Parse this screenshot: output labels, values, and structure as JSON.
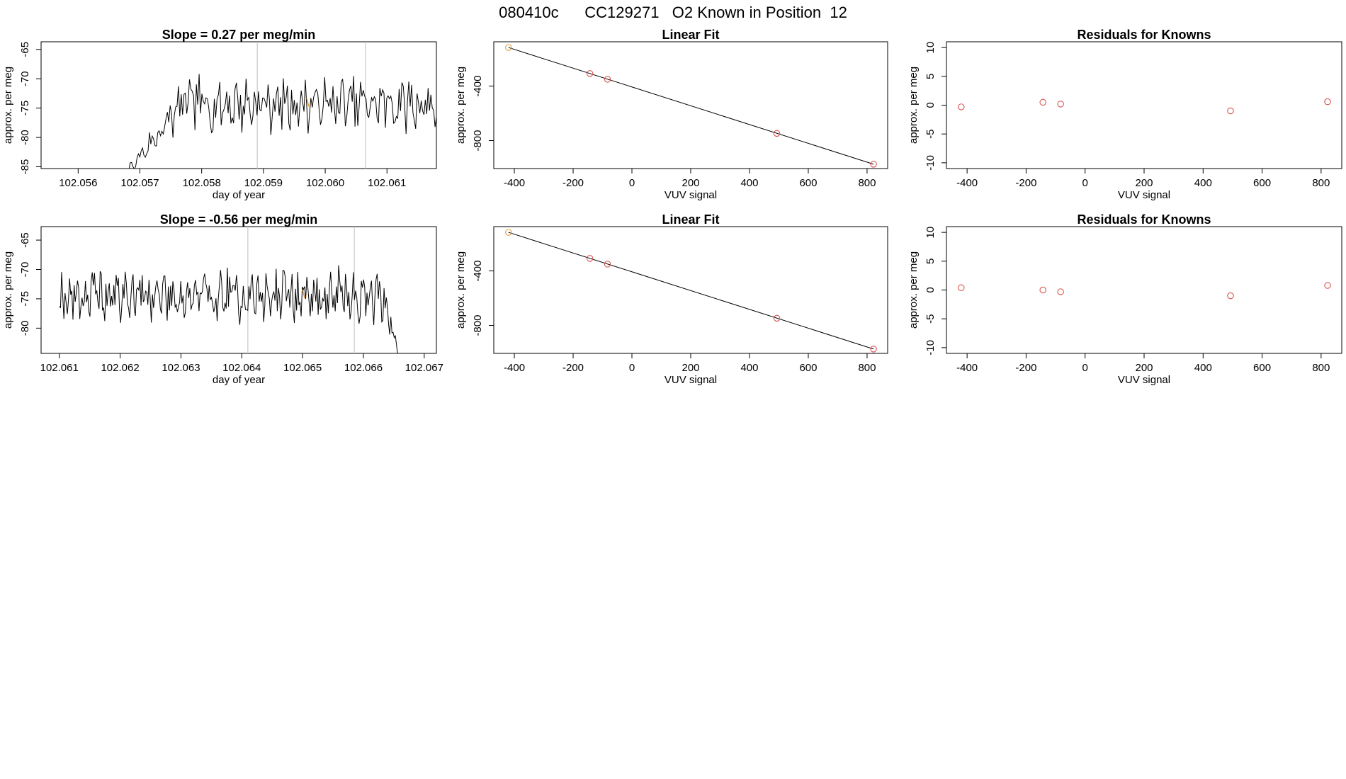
{
  "figure": {
    "title": "080410c      CC129271   O2 Known in Position  12"
  },
  "colors": {
    "axis": "#000000",
    "series": "#000000",
    "marker_line": "#c8c8c8",
    "point": "#d9534f",
    "highlight": "#e8a040"
  },
  "chart_data": [
    {
      "id": "ts1",
      "type": "line",
      "title": "Slope =  0.27  per meg/min",
      "xlabel": "day of year",
      "ylabel": "approx. per meg",
      "xlim": [
        102.0554,
        102.0618
      ],
      "ylim": [
        -85.3,
        -63.7
      ],
      "xticks": [
        102.056,
        102.057,
        102.058,
        102.059,
        102.06,
        102.061
      ],
      "xtick_labels": [
        "102.056",
        "102.057",
        "102.058",
        "102.059",
        "102.060",
        "102.061"
      ],
      "yticks": [
        -85,
        -80,
        -75,
        -70,
        -65
      ],
      "ytick_labels": [
        "-85",
        "-80",
        "-75",
        "-70",
        "-65"
      ],
      "vlines": [
        102.0589,
        102.06065
      ],
      "x_start": 102.0551,
      "x_end": 102.0618,
      "seed": 7,
      "mean": -74.3,
      "amp": 2.4,
      "rise": {
        "until": 102.0577,
        "from": -87.5
      },
      "drop": null,
      "highlight_x": 102.0597,
      "highlight_y": -74.0
    },
    {
      "id": "fit1",
      "type": "scatter",
      "title": "Linear Fit",
      "xlabel": "VUV signal",
      "ylabel": "approx. per meg",
      "xlim": [
        -470,
        870
      ],
      "ylim": [
        -1005,
        -75
      ],
      "xticks": [
        -400,
        -200,
        0,
        200,
        400,
        600,
        800
      ],
      "xtick_labels": [
        "-400",
        "-200",
        "0",
        "200",
        "400",
        "600",
        "800"
      ],
      "yticks": [
        -400,
        -800
      ],
      "ytick_labels": [
        "-400",
        "-800"
      ],
      "x": [
        -420,
        -143,
        -83,
        493,
        822
      ],
      "y": [
        -117,
        -308,
        -350,
        -747,
        -973
      ],
      "fit": {
        "x0": -420,
        "y0": -117,
        "x1": 822,
        "y1": -973
      }
    },
    {
      "id": "res1",
      "type": "scatter",
      "title": "Residuals for Knowns",
      "xlabel": "VUV signal",
      "ylabel": "approx. per meg",
      "xlim": [
        -470,
        870
      ],
      "ylim": [
        -11,
        11
      ],
      "xticks": [
        -400,
        -200,
        0,
        200,
        400,
        600,
        800
      ],
      "xtick_labels": [
        "-400",
        "-200",
        "0",
        "200",
        "400",
        "600",
        "800"
      ],
      "yticks": [
        -10,
        -5,
        0,
        5,
        10
      ],
      "ytick_labels": [
        "-10",
        "-5",
        "0",
        "5",
        "10"
      ],
      "x": [
        -420,
        -143,
        -83,
        493,
        822
      ],
      "y": [
        -0.3,
        0.5,
        0.2,
        -1.0,
        0.6
      ]
    },
    {
      "id": "ts2",
      "type": "line",
      "title": "Slope =  -0.56  per meg/min",
      "xlabel": "day of year",
      "ylabel": "approx. per meg",
      "xlim": [
        102.0607,
        102.0672
      ],
      "ylim": [
        -84.3,
        -62.7
      ],
      "xticks": [
        102.061,
        102.062,
        102.063,
        102.064,
        102.065,
        102.066,
        102.067
      ],
      "xtick_labels": [
        "102.061",
        "102.062",
        "102.063",
        "102.064",
        "102.065",
        "102.066",
        "102.067"
      ],
      "yticks": [
        -80,
        -75,
        -70,
        -65
      ],
      "ytick_labels": [
        "-80",
        "-75",
        "-70",
        "-65"
      ],
      "vlines": [
        102.0641,
        102.06585
      ],
      "x_start": 102.061,
      "x_end": 102.0666,
      "seed": 19,
      "mean": -74.5,
      "amp": 2.3,
      "rise": null,
      "drop": {
        "from_x": 102.06635,
        "to": -86
      },
      "highlight_x": 102.065,
      "highlight_y": -74.2
    },
    {
      "id": "fit2",
      "type": "scatter",
      "title": "Linear Fit",
      "xlabel": "VUV signal",
      "ylabel": "approx. per meg",
      "xlim": [
        -470,
        870
      ],
      "ylim": [
        -1005,
        -75
      ],
      "xticks": [
        -400,
        -200,
        0,
        200,
        400,
        600,
        800
      ],
      "xtick_labels": [
        "-400",
        "-200",
        "0",
        "200",
        "400",
        "600",
        "800"
      ],
      "yticks": [
        -400,
        -800
      ],
      "ytick_labels": [
        "-400",
        "-800"
      ],
      "x": [
        -420,
        -143,
        -83,
        493,
        822
      ],
      "y": [
        -117,
        -308,
        -350,
        -747,
        -973
      ],
      "fit": {
        "x0": -420,
        "y0": -117,
        "x1": 822,
        "y1": -973
      }
    },
    {
      "id": "res2",
      "type": "scatter",
      "title": "Residuals for Knowns",
      "xlabel": "VUV signal",
      "ylabel": "approx. per meg",
      "xlim": [
        -470,
        870
      ],
      "ylim": [
        -11,
        11
      ],
      "xticks": [
        -400,
        -200,
        0,
        200,
        400,
        600,
        800
      ],
      "xtick_labels": [
        "-400",
        "-200",
        "0",
        "200",
        "400",
        "600",
        "800"
      ],
      "yticks": [
        -10,
        -5,
        0,
        5,
        10
      ],
      "ytick_labels": [
        "-10",
        "-5",
        "0",
        "5",
        "10"
      ],
      "x": [
        -420,
        -143,
        -83,
        493,
        822
      ],
      "y": [
        0.4,
        0.0,
        -0.3,
        -1.0,
        0.8
      ]
    }
  ]
}
